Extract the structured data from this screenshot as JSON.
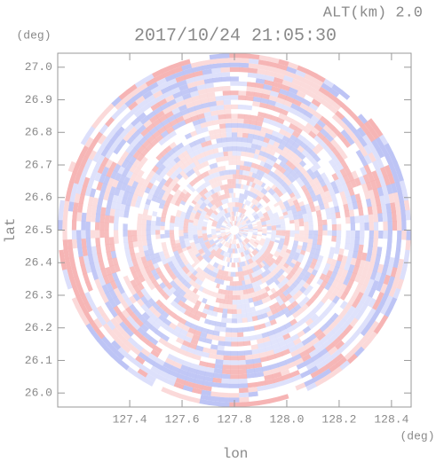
{
  "chart_data": {
    "type": "ppi",
    "title": "2017/10/24 21:05:30",
    "annotation": "ALT(km) 2.0",
    "xlabel": "lon",
    "ylabel": "lat",
    "xunit": "(deg)",
    "yunit": "(deg)",
    "center": [
      127.8,
      26.5
    ],
    "xlim": [
      127.125,
      128.475
    ],
    "ylim": [
      25.957,
      27.043
    ],
    "xticks": [
      127.4,
      127.6,
      127.8,
      {
        "value": 128,
        "label": "128.0"
      },
      128.2,
      128.4
    ],
    "yticks": [
      {
        "value": 26,
        "label": "26.0"
      },
      26.1,
      26.2,
      26.3,
      26.4,
      26.5,
      26.6,
      26.7,
      26.8,
      26.9,
      {
        "value": 27,
        "label": "27.0"
      }
    ],
    "colors": [
      "#f6b3b3",
      "#fbd9d9",
      "#ffffff",
      "#dcdffb",
      "#bcc3f5"
    ]
  }
}
